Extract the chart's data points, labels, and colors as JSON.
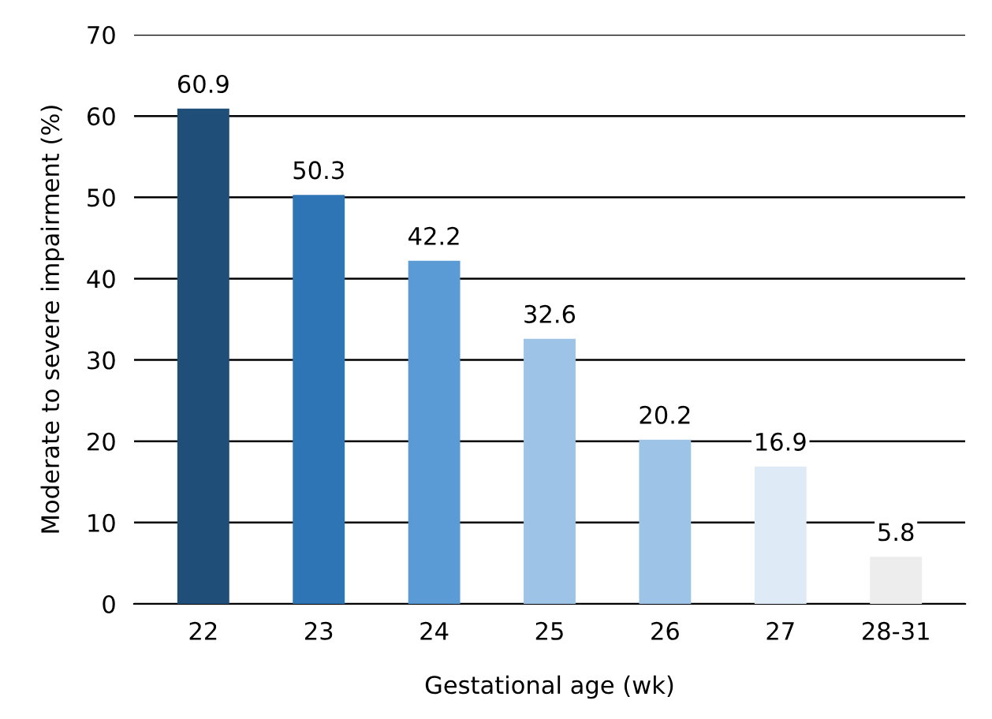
{
  "chart_data": {
    "type": "bar",
    "xlabel": "Gestational age (wk)",
    "ylabel": "Moderate to severe impairment (%)",
    "categories": [
      "22",
      "23",
      "24",
      "25",
      "26",
      "27",
      "28-31"
    ],
    "values": [
      60.9,
      50.3,
      42.2,
      32.6,
      20.2,
      16.9,
      5.8
    ],
    "colors": [
      "#1f4e79",
      "#2e75b6",
      "#5b9bd5",
      "#9dc3e6",
      "#9dc3e6",
      "#deebf7",
      "#ededed"
    ],
    "ylim": [
      0,
      70
    ],
    "yticks": [
      0,
      10,
      20,
      30,
      40,
      50,
      60,
      70
    ],
    "grid": "y",
    "data_labels": true
  }
}
